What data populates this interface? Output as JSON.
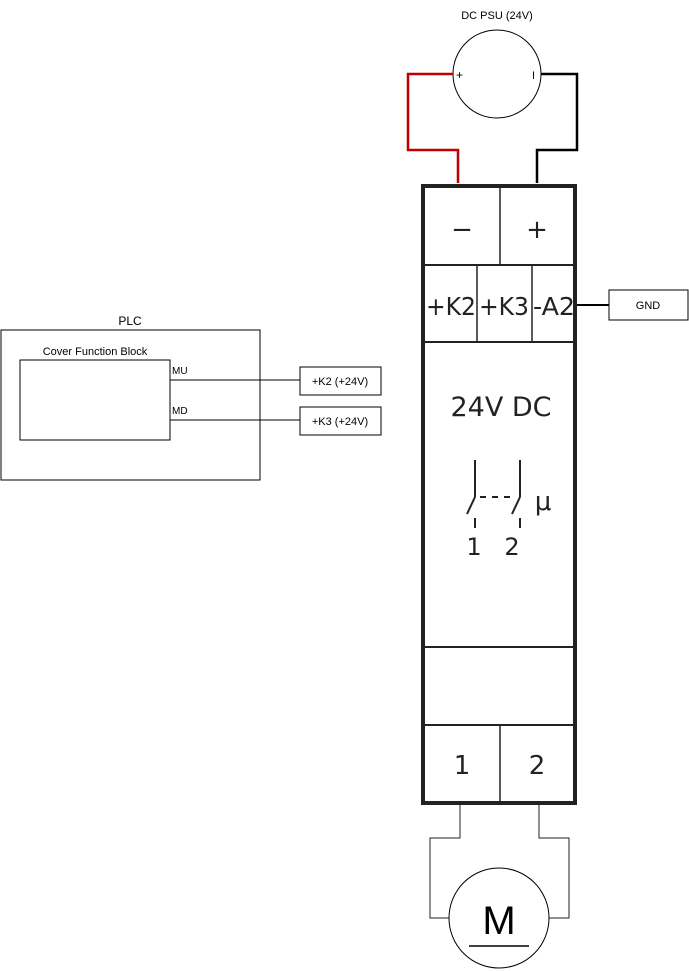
{
  "psu": {
    "title": "DC PSU (24V)",
    "plus": "+",
    "minus": "I"
  },
  "plc": {
    "title": "PLC",
    "block_title": "Cover Function Block",
    "out_mu": "MU",
    "out_md": "MD"
  },
  "tags": {
    "k2": "+K2 (+24V)",
    "k3": "+K3 (+24V)",
    "gnd": "GND"
  },
  "relay": {
    "top_terminal_left": "−",
    "top_terminal_right": "+",
    "inputs": [
      "+K2",
      "+K3",
      "-A2"
    ],
    "voltage": "24V DC",
    "contact_1": "1",
    "contact_2": "2",
    "mu_symbol": "μ",
    "bottom_terminal_1": "1",
    "bottom_terminal_2": "2"
  },
  "motor": {
    "label": "M"
  },
  "colors": {
    "positive_wire": "#c00000",
    "negative_wire": "#000000",
    "relay_border": "#222222"
  }
}
